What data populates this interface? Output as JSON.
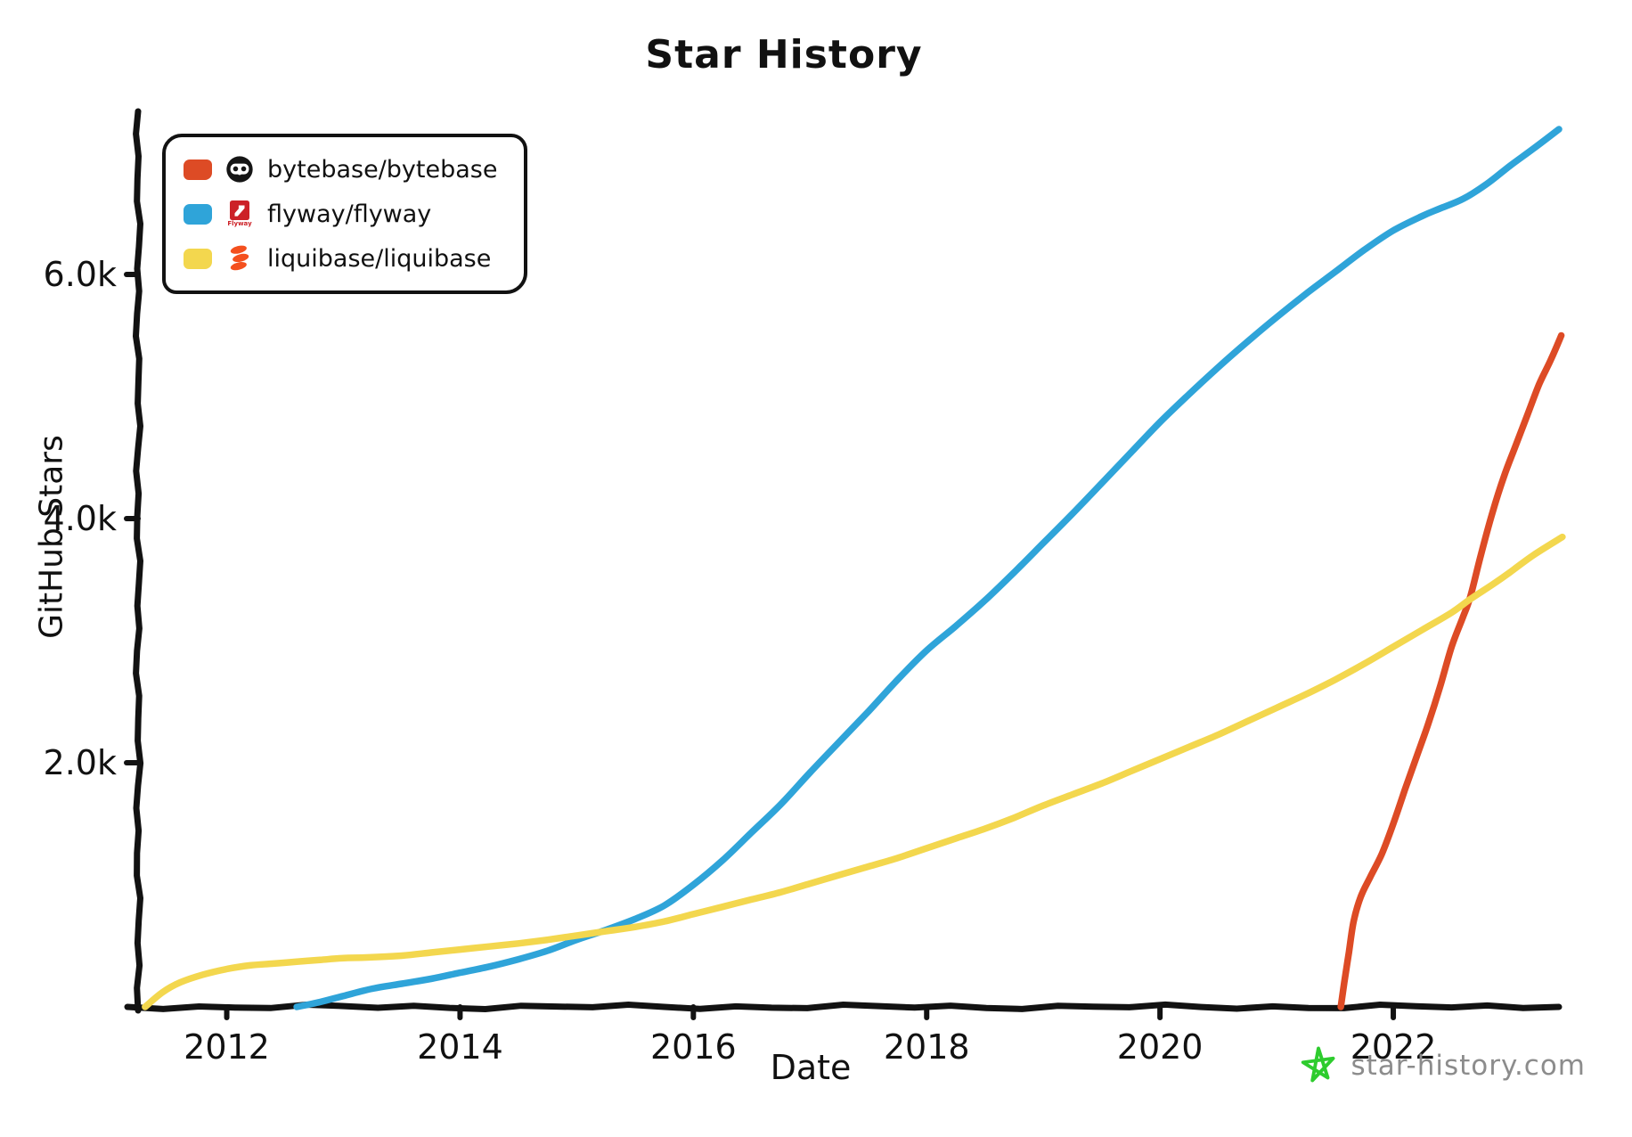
{
  "title": "Star History",
  "axes": {
    "x_label": "Date",
    "y_label": "GitHub Stars"
  },
  "legend": {
    "items": [
      {
        "repo": "bytebase/bytebase",
        "color": "#dd4b25",
        "icon": "bytebase-logo"
      },
      {
        "repo": "flyway/flyway",
        "color": "#2fa4d9",
        "icon": "flyway-logo",
        "logo_text": "Flyway"
      },
      {
        "repo": "liquibase/liquibase",
        "color": "#f3d74e",
        "icon": "liquibase-logo"
      }
    ]
  },
  "watermark": {
    "text": "star-history.com",
    "star_color": "#2ecc2e",
    "text_color": "#8c8c8c"
  },
  "chart_data": {
    "type": "line",
    "title": "Star History",
    "xlabel": "Date",
    "ylabel": "GitHub Stars",
    "x_range": [
      2011.24,
      2023.42
    ],
    "y_range": [
      0,
      7336
    ],
    "grid": false,
    "legend_position": "top-left",
    "axis_color": "#121212",
    "x_ticks": [
      {
        "value": 2012,
        "label": "2012"
      },
      {
        "value": 2014,
        "label": "2014"
      },
      {
        "value": 2016,
        "label": "2016"
      },
      {
        "value": 2018,
        "label": "2018"
      },
      {
        "value": 2020,
        "label": "2020"
      },
      {
        "value": 2022,
        "label": "2022"
      }
    ],
    "y_ticks": [
      {
        "value": 2000,
        "label": "2.0k"
      },
      {
        "value": 4000,
        "label": "4.0k"
      },
      {
        "value": 6000,
        "label": "6.0k"
      }
    ],
    "series": [
      {
        "name": "bytebase/bytebase",
        "color": "#dd4b25",
        "points": [
          [
            2021.55,
            0
          ],
          [
            2021.58,
            200
          ],
          [
            2021.62,
            450
          ],
          [
            2021.66,
            700
          ],
          [
            2021.72,
            900
          ],
          [
            2021.8,
            1060
          ],
          [
            2021.9,
            1250
          ],
          [
            2022.0,
            1500
          ],
          [
            2022.1,
            1780
          ],
          [
            2022.2,
            2050
          ],
          [
            2022.3,
            2320
          ],
          [
            2022.4,
            2620
          ],
          [
            2022.5,
            2950
          ],
          [
            2022.6,
            3200
          ],
          [
            2022.66,
            3360
          ],
          [
            2022.75,
            3700
          ],
          [
            2022.85,
            4050
          ],
          [
            2022.95,
            4350
          ],
          [
            2023.05,
            4600
          ],
          [
            2023.15,
            4850
          ],
          [
            2023.25,
            5100
          ],
          [
            2023.35,
            5300
          ],
          [
            2023.44,
            5500
          ]
        ]
      },
      {
        "name": "flyway/flyway",
        "color": "#2fa4d9",
        "points": [
          [
            2012.6,
            0
          ],
          [
            2012.8,
            40
          ],
          [
            2013.0,
            90
          ],
          [
            2013.25,
            150
          ],
          [
            2013.5,
            190
          ],
          [
            2013.75,
            230
          ],
          [
            2014.0,
            280
          ],
          [
            2014.25,
            330
          ],
          [
            2014.5,
            390
          ],
          [
            2014.75,
            460
          ],
          [
            2015.0,
            550
          ],
          [
            2015.25,
            630
          ],
          [
            2015.5,
            720
          ],
          [
            2015.75,
            830
          ],
          [
            2016.0,
            1000
          ],
          [
            2016.25,
            1200
          ],
          [
            2016.5,
            1430
          ],
          [
            2016.75,
            1660
          ],
          [
            2017.0,
            1920
          ],
          [
            2017.25,
            2170
          ],
          [
            2017.5,
            2420
          ],
          [
            2017.75,
            2680
          ],
          [
            2018.0,
            2920
          ],
          [
            2018.25,
            3120
          ],
          [
            2018.5,
            3330
          ],
          [
            2018.75,
            3560
          ],
          [
            2019.0,
            3800
          ],
          [
            2019.25,
            4040
          ],
          [
            2019.5,
            4290
          ],
          [
            2019.75,
            4540
          ],
          [
            2020.0,
            4790
          ],
          [
            2020.25,
            5020
          ],
          [
            2020.5,
            5240
          ],
          [
            2020.75,
            5450
          ],
          [
            2021.0,
            5650
          ],
          [
            2021.25,
            5840
          ],
          [
            2021.5,
            6020
          ],
          [
            2021.75,
            6200
          ],
          [
            2022.0,
            6360
          ],
          [
            2022.25,
            6480
          ],
          [
            2022.4,
            6540
          ],
          [
            2022.6,
            6620
          ],
          [
            2022.8,
            6740
          ],
          [
            2023.0,
            6890
          ],
          [
            2023.2,
            7030
          ],
          [
            2023.42,
            7190
          ]
        ]
      },
      {
        "name": "liquibase/liquibase",
        "color": "#f3d74e",
        "points": [
          [
            2011.3,
            0
          ],
          [
            2011.45,
            120
          ],
          [
            2011.6,
            200
          ],
          [
            2011.8,
            265
          ],
          [
            2012.0,
            310
          ],
          [
            2012.2,
            340
          ],
          [
            2012.4,
            355
          ],
          [
            2012.6,
            370
          ],
          [
            2012.8,
            385
          ],
          [
            2013.0,
            400
          ],
          [
            2013.2,
            405
          ],
          [
            2013.5,
            420
          ],
          [
            2013.75,
            445
          ],
          [
            2014.0,
            470
          ],
          [
            2014.25,
            495
          ],
          [
            2014.5,
            520
          ],
          [
            2014.75,
            550
          ],
          [
            2015.0,
            585
          ],
          [
            2015.25,
            620
          ],
          [
            2015.5,
            655
          ],
          [
            2015.75,
            700
          ],
          [
            2016.0,
            760
          ],
          [
            2016.25,
            820
          ],
          [
            2016.5,
            880
          ],
          [
            2016.75,
            940
          ],
          [
            2017.0,
            1010
          ],
          [
            2017.25,
            1080
          ],
          [
            2017.5,
            1150
          ],
          [
            2017.75,
            1220
          ],
          [
            2018.0,
            1300
          ],
          [
            2018.25,
            1380
          ],
          [
            2018.5,
            1460
          ],
          [
            2018.75,
            1550
          ],
          [
            2019.0,
            1650
          ],
          [
            2019.25,
            1740
          ],
          [
            2019.5,
            1830
          ],
          [
            2019.75,
            1930
          ],
          [
            2020.0,
            2030
          ],
          [
            2020.25,
            2130
          ],
          [
            2020.5,
            2230
          ],
          [
            2020.75,
            2340
          ],
          [
            2021.0,
            2450
          ],
          [
            2021.25,
            2560
          ],
          [
            2021.5,
            2680
          ],
          [
            2021.75,
            2810
          ],
          [
            2022.0,
            2950
          ],
          [
            2022.25,
            3090
          ],
          [
            2022.5,
            3230
          ],
          [
            2022.66,
            3340
          ],
          [
            2022.85,
            3460
          ],
          [
            2023.0,
            3560
          ],
          [
            2023.2,
            3700
          ],
          [
            2023.45,
            3850
          ]
        ]
      }
    ]
  }
}
